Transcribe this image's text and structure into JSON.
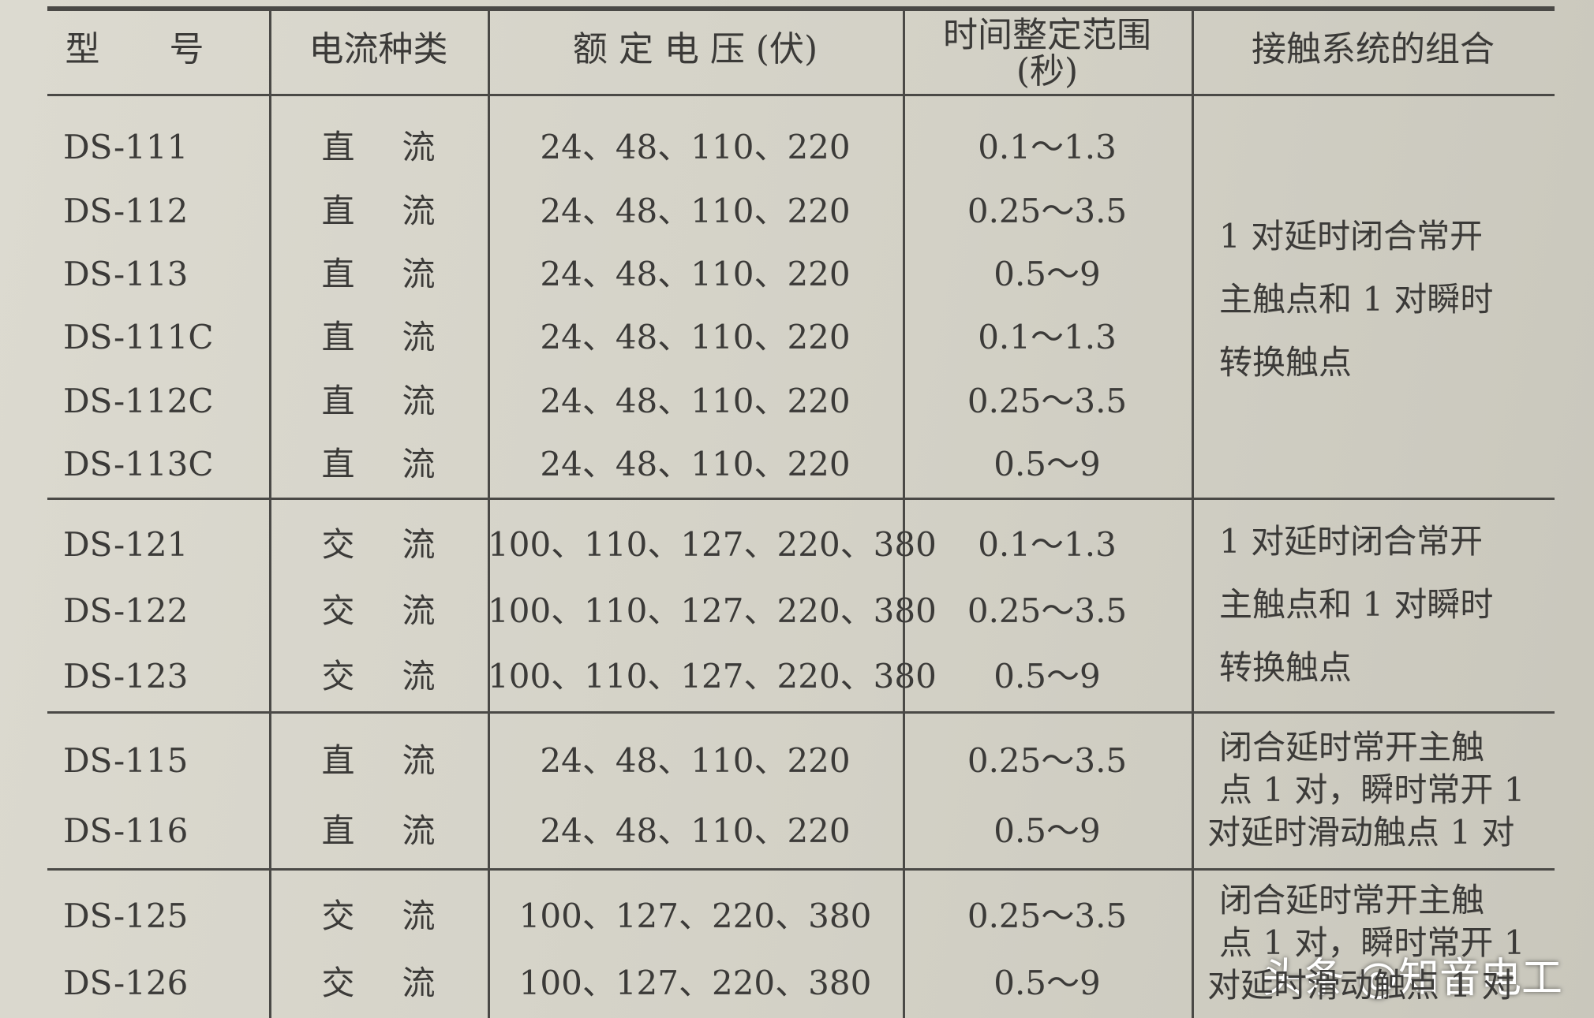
{
  "header": {
    "columns": [
      [
        "型　　号"
      ],
      [
        "电流种类"
      ],
      [
        "额 定 电 压 (伏)"
      ],
      [
        "时间整定范围",
        "(秒)"
      ],
      [
        "接触系统的组合"
      ]
    ]
  },
  "groups": [
    {
      "rows": [
        [
          "DS-111",
          "直流",
          "24、48、110、220",
          "0.1～1.3"
        ],
        [
          "DS-112",
          "直流",
          "24、48、110、220",
          "0.25～3.5"
        ],
        [
          "DS-113",
          "直流",
          "24、48、110、220",
          "0.5～9"
        ],
        [
          "DS-111C",
          "直流",
          "24、48、110、220",
          "0.1～1.3"
        ],
        [
          "DS-112C",
          "直流",
          "24、48、110、220",
          "0.25～3.5"
        ],
        [
          "DS-113C",
          "直流",
          "24、48、110、220",
          "0.5～9"
        ]
      ],
      "contacts": [
        "1 对延时闭合常开",
        "主触点和 1 对瞬时",
        "转换触点"
      ]
    },
    {
      "rows": [
        [
          "DS-121",
          "交流",
          "100、110、127、220、380",
          "0.1～1.3"
        ],
        [
          "DS-122",
          "交流",
          "100、110、127、220、380",
          "0.25～3.5"
        ],
        [
          "DS-123",
          "交流",
          "100、110、127、220、380",
          "0.5～9"
        ]
      ],
      "contacts": [
        "1 对延时闭合常开",
        "主触点和 1 对瞬时",
        "转换触点"
      ]
    },
    {
      "rows": [
        [
          "DS-115",
          "直流",
          "24、48、110、220",
          "0.25～3.5"
        ],
        [
          "DS-116",
          "直流",
          "24、48、110、220",
          "0.5～9"
        ]
      ],
      "contacts": [
        "闭合延时常开主触",
        "点 1 对，瞬时常开 1",
        "对延时滑动触点 1 对"
      ]
    },
    {
      "rows": [
        [
          "DS-125",
          "交流",
          "100、127、220、380",
          "0.25～3.5"
        ],
        [
          "DS-126",
          "交流",
          "100、127、220、380",
          "0.5～9"
        ]
      ],
      "contacts": [
        "闭合延时常开主触",
        "点 1 对，瞬时常开 1",
        "对延时滑动触点 1 对"
      ]
    }
  ],
  "watermark": "头条 @知音电工"
}
